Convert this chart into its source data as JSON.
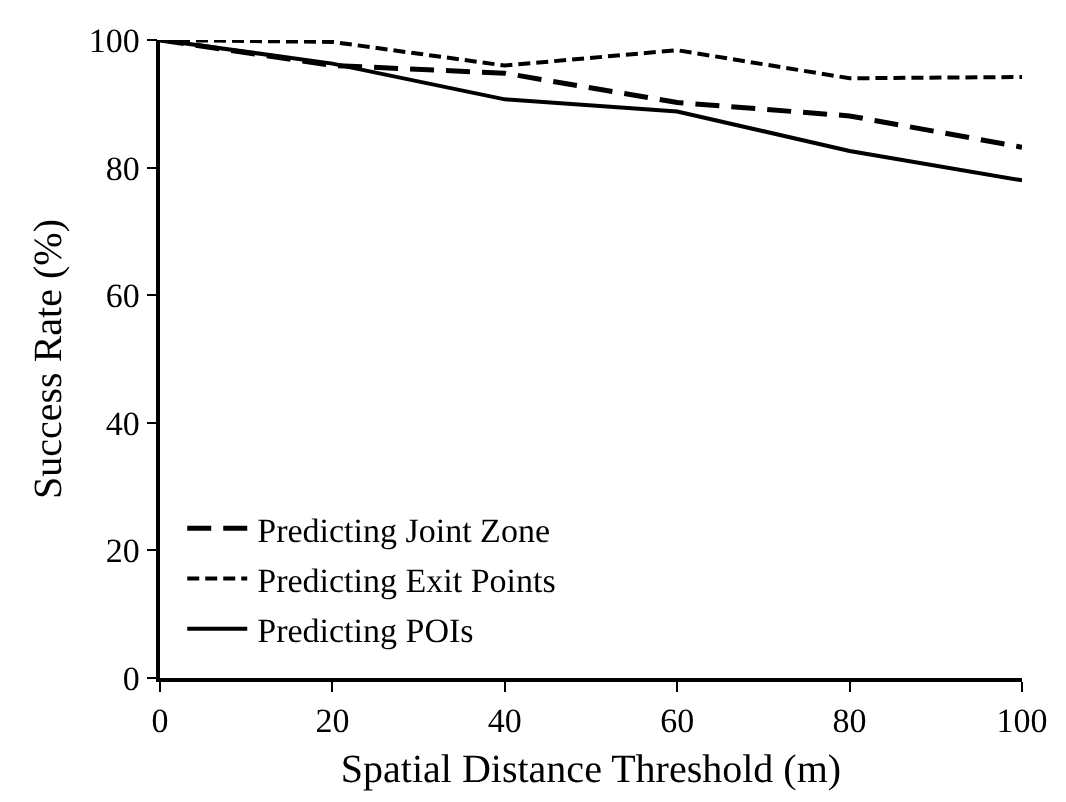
{
  "chart_data": {
    "type": "line",
    "xlabel": "Spatial Distance Threshold (m)",
    "ylabel": "Success Rate (%)",
    "x": [
      0,
      20,
      40,
      60,
      80,
      100
    ],
    "series": [
      {
        "name": "Predicting Joint Zone",
        "color": "#000000",
        "line_style": "dashed",
        "values": [
          100,
          96,
          94.8,
          90.2,
          88.1,
          83.2
        ]
      },
      {
        "name": "Predicting Exit Points",
        "color": "#000000",
        "line_style": "dotted",
        "values": [
          100,
          99.7,
          96,
          98.4,
          94,
          94.2
        ]
      },
      {
        "name": "Predicting POIs",
        "color": "#000000",
        "line_style": "solid",
        "values": [
          100,
          96.3,
          90.7,
          88.8,
          82.6,
          78
        ]
      }
    ],
    "xlim": [
      0,
      100
    ],
    "xticks": [
      0,
      20,
      40,
      60,
      80,
      100
    ],
    "ylim": [
      0,
      100
    ],
    "yticks": [
      0,
      20,
      40,
      60,
      80,
      100
    ],
    "grid": false,
    "legend": "bottom left",
    "marker": "none"
  }
}
